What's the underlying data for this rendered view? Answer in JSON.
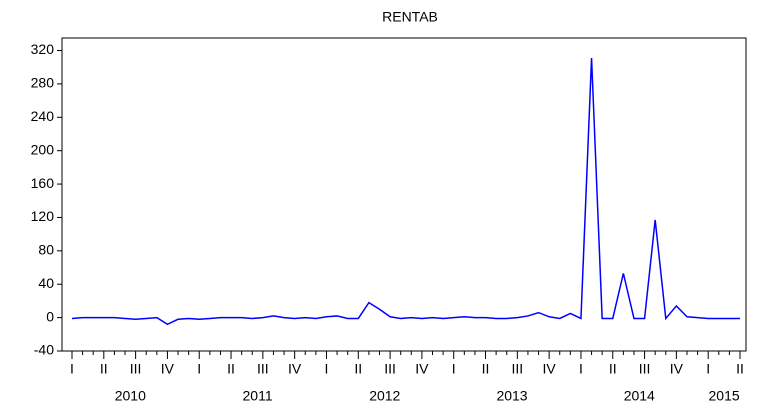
{
  "chart_data": {
    "type": "line",
    "title": "RENTAB",
    "categories": [
      "I",
      null,
      null,
      "II",
      null,
      null,
      "III",
      null,
      null,
      "IV",
      null,
      null,
      "I",
      null,
      null,
      "II",
      null,
      null,
      "III",
      null,
      null,
      "IV",
      null,
      null,
      "I",
      null,
      null,
      "II",
      null,
      null,
      "III",
      null,
      null,
      "IV",
      null,
      null,
      "I",
      null,
      null,
      "II",
      null,
      null,
      "III",
      null,
      null,
      "IV",
      null,
      null,
      "I",
      null,
      null,
      "II",
      null,
      null,
      "III",
      null,
      null,
      "IV",
      null,
      null,
      "I",
      null,
      null,
      "II"
    ],
    "years": [
      "2010",
      "2011",
      "2012",
      "2013",
      "2014",
      "2015"
    ],
    "series": [
      {
        "name": "RENTAB",
        "color": "#0000ff",
        "values": [
          -1,
          0,
          0,
          0,
          0,
          -1,
          -2,
          -1,
          0,
          -8,
          -2,
          -1,
          -2,
          -1,
          0,
          0,
          0,
          -1,
          0,
          2,
          0,
          -1,
          0,
          -1,
          1,
          2,
          -1,
          -1,
          18,
          10,
          1,
          -1,
          0,
          -1,
          0,
          -1,
          0,
          1,
          0,
          0,
          -1,
          -1,
          0,
          2,
          6,
          1,
          -1,
          5,
          -1,
          311,
          -1,
          -1,
          53,
          -1,
          -1,
          117,
          -1,
          14,
          1,
          0,
          -1,
          -1,
          -1,
          -1
        ]
      }
    ],
    "ylim": [
      -40,
      335
    ],
    "yticks": [
      -40,
      0,
      40,
      80,
      120,
      160,
      200,
      240,
      280,
      320
    ]
  }
}
